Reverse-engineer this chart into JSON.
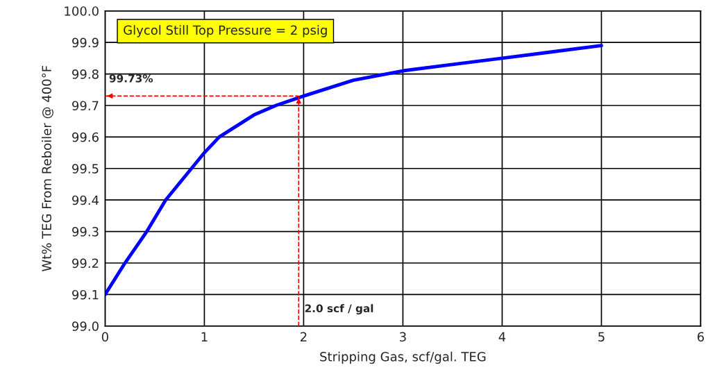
{
  "chart_data": {
    "type": "line",
    "xlabel": "Stripping Gas, scf/gal. TEG",
    "ylabel": "Wt% TEG From Reboiler @ 400°F",
    "annotations": [
      "Glycol Still Top Pressure = 2 psig"
    ],
    "x": [
      0,
      0.2,
      0.42,
      0.61,
      0.87,
      1.0,
      1.15,
      1.5,
      1.72,
      2.0,
      2.5,
      3,
      3.5,
      4,
      4.5,
      5
    ],
    "series": [
      {
        "color": "#0000ff",
        "values": [
          99.1,
          99.2,
          99.3,
          99.4,
          99.5,
          99.55,
          99.6,
          99.67,
          99.7,
          99.73,
          99.78,
          99.81,
          99.83,
          99.85,
          99.87,
          99.89
        ]
      }
    ],
    "xlim": [
      0,
      6
    ],
    "xticks": [
      0,
      1,
      2,
      3,
      4,
      5,
      6
    ],
    "ylim": [
      99.0,
      100.0
    ],
    "yticks": [
      {
        "value": 99.0,
        "label": "99.0"
      },
      99.1,
      99.2,
      99.3,
      99.4,
      99.5,
      99.6,
      99.7,
      99.8,
      99.9,
      {
        "value": 100.0,
        "label": "100.0"
      }
    ],
    "ref_lines": [
      {
        "axis": "y",
        "value": 99.73,
        "label": "99.73%",
        "color": "#ff0000",
        "line_style": "dashed"
      },
      {
        "axis": "x",
        "value": 1.95,
        "label": "2.0 scf / gal",
        "color": "#ff0000",
        "line_style": "dashed"
      }
    ],
    "grid": true,
    "marker": "none",
    "line_style": "solid"
  }
}
